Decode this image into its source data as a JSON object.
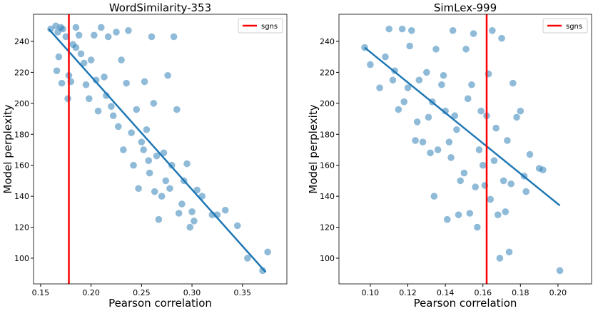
{
  "chart_data": [
    {
      "type": "scatter",
      "title": "WordSimilarity-353",
      "x_label": "Pearson correlation",
      "y_label": "Model perplexity",
      "point_color": "#1f77b4",
      "x": [
        0.16,
        0.165,
        0.167,
        0.17,
        0.172,
        0.175,
        0.168,
        0.166,
        0.171,
        0.177,
        0.178,
        0.18,
        0.182,
        0.185,
        0.185,
        0.188,
        0.19,
        0.193,
        0.195,
        0.198,
        0.2,
        0.203,
        0.205,
        0.207,
        0.21,
        0.213,
        0.215,
        0.217,
        0.22,
        0.222,
        0.225,
        0.227,
        0.23,
        0.232,
        0.235,
        0.237,
        0.24,
        0.242,
        0.245,
        0.247,
        0.25,
        0.252,
        0.253,
        0.255,
        0.257,
        0.258,
        0.26,
        0.262,
        0.263,
        0.265,
        0.267,
        0.27,
        0.272,
        0.274,
        0.276,
        0.278,
        0.28,
        0.282,
        0.285,
        0.287,
        0.29,
        0.292,
        0.295,
        0.298,
        0.3,
        0.302,
        0.305,
        0.31,
        0.32,
        0.325,
        0.333,
        0.345,
        0.355,
        0.37,
        0.375
      ],
      "y": [
        248,
        250,
        246,
        249,
        248,
        243,
        230,
        221,
        213,
        203,
        218,
        214,
        238,
        236,
        249,
        244,
        232,
        226,
        212,
        203,
        228,
        244,
        215,
        195,
        249,
        217,
        205,
        243,
        198,
        192,
        246,
        185,
        228,
        170,
        213,
        247,
        181,
        160,
        196,
        145,
        175,
        170,
        214,
        183,
        163,
        155,
        243,
        200,
        143,
        166,
        125,
        140,
        168,
        150,
        218,
        145,
        160,
        243,
        196,
        129,
        135,
        150,
        161,
        120,
        130,
        124,
        144,
        140,
        128,
        128,
        131,
        121,
        100,
        92,
        104
      ],
      "fit": {
        "color": "#1f77b4",
        "x": [
          0.158,
          0.373
        ],
        "y": [
          248,
          91
        ]
      },
      "vline": {
        "name": "sgns",
        "color": "#ff0000",
        "x": 0.178
      },
      "legend": "upper right",
      "xlim": [
        0.143,
        0.394
      ],
      "ylim": [
        83.4,
        257.5
      ],
      "xticks": [
        0.15,
        {
          "value": 0.2,
          "label": "0.20"
        },
        0.25,
        {
          "value": 0.3,
          "label": "0.30"
        },
        0.35
      ],
      "yticks": [
        100,
        120,
        140,
        160,
        180,
        200,
        220,
        240
      ]
    },
    {
      "type": "scatter",
      "title": "SimLex-999",
      "x_label": "Pearson correlation",
      "y_label": "Model perplexity",
      "point_color": "#1f77b4",
      "x": [
        0.097,
        0.1,
        0.105,
        0.108,
        0.11,
        0.112,
        0.113,
        0.115,
        0.117,
        0.118,
        0.12,
        0.121,
        0.122,
        0.124,
        0.125,
        0.126,
        0.128,
        0.13,
        0.131,
        0.132,
        0.133,
        0.134,
        0.135,
        0.136,
        0.138,
        0.139,
        0.14,
        0.141,
        0.142,
        0.143,
        0.144,
        0.145,
        0.146,
        0.147,
        0.148,
        0.15,
        0.151,
        0.152,
        0.153,
        0.154,
        0.155,
        0.156,
        0.157,
        0.158,
        0.159,
        0.16,
        0.161,
        0.162,
        0.163,
        0.164,
        0.165,
        0.166,
        0.167,
        0.168,
        0.169,
        0.17,
        0.171,
        0.172,
        0.173,
        0.174,
        0.175,
        0.176,
        0.178,
        0.18,
        0.182,
        0.183,
        0.185,
        0.19,
        0.192,
        0.201
      ],
      "y": [
        236,
        225,
        210,
        230,
        248,
        215,
        221,
        196,
        248,
        201,
        210,
        237,
        247,
        176,
        188,
        215,
        175,
        220,
        191,
        168,
        201,
        140,
        235,
        170,
        212,
        218,
        195,
        125,
        175,
        165,
        247,
        192,
        183,
        128,
        150,
        155,
        235,
        203,
        129,
        212,
        245,
        146,
        120,
        170,
        195,
        160,
        147,
        192,
        219,
        138,
        247,
        163,
        184,
        128,
        100,
        242,
        150,
        130,
        176,
        104,
        148,
        213,
        191,
        195,
        153,
        143,
        167,
        158,
        157,
        92
      ],
      "fit": {
        "color": "#1f77b4",
        "x": [
          0.097,
          0.201
        ],
        "y": [
          236,
          134
        ]
      },
      "vline": {
        "name": "sgns",
        "color": "#ff0000",
        "x": 0.162
      },
      "legend": "upper right",
      "xlim": [
        0.0833,
        0.2179
      ],
      "ylim": [
        83.4,
        257.5
      ],
      "xticks": [
        {
          "value": 0.1,
          "label": "0.10"
        },
        0.12,
        0.14,
        0.16,
        0.18,
        {
          "value": 0.2,
          "label": "0.20"
        }
      ],
      "yticks": [
        100,
        120,
        140,
        160,
        180,
        200,
        220,
        240
      ]
    }
  ]
}
